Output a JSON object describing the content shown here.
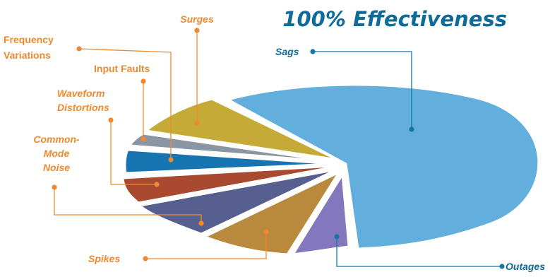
{
  "chart_data": {
    "type": "pie",
    "title": "100% Effectiveness",
    "slices": [
      {
        "label": "Sags",
        "color": "#62aedd",
        "leader_color": "#1576a6",
        "italic": true
      },
      {
        "label": "Outages",
        "color": "#8378bd",
        "leader_color": "#1576a6",
        "italic": true
      },
      {
        "label": "Spikes",
        "color": "#b98a3d",
        "leader_color": "#f0892e",
        "italic": true
      },
      {
        "label": "Common-Mode Noise",
        "lines": [
          "Common-",
          "Mode",
          "Noise"
        ],
        "color": "#565f8f",
        "leader_color": "#f0892e",
        "italic": true
      },
      {
        "label": "Waveform Distortions",
        "lines": [
          "Waveform",
          "Distortions"
        ],
        "color": "#a9492f",
        "leader_color": "#f0892e",
        "italic": true
      },
      {
        "label": "Frequency Variations",
        "lines": [
          "Frequency",
          "Variations"
        ],
        "color": "#1675b0",
        "leader_color": "#f0892e",
        "italic": false
      },
      {
        "label": "Input Faults",
        "color": "#8a96a3",
        "leader_color": "#f0892e",
        "italic": false
      },
      {
        "label": "Surges",
        "color": "#c5aa37",
        "leader_color": "#f0892e",
        "italic": true
      }
    ],
    "legend": "none"
  }
}
